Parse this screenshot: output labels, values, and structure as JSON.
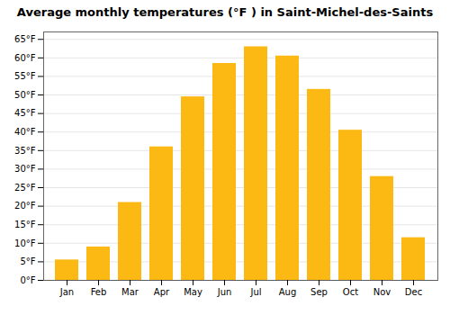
{
  "chart_data": {
    "type": "bar",
    "title": "Average monthly temperatures (°F ) in Saint-Michel-des-Saints",
    "categories": [
      "Jan",
      "Feb",
      "Mar",
      "Apr",
      "May",
      "Jun",
      "Jul",
      "Aug",
      "Sep",
      "Oct",
      "Nov",
      "Dec"
    ],
    "values": [
      5.5,
      9.0,
      21.0,
      36.0,
      49.5,
      58.5,
      63.0,
      60.5,
      51.5,
      40.5,
      28.0,
      11.5
    ],
    "color": "#FDB913",
    "ylim": [
      0,
      67
    ],
    "yticks": [
      {
        "value": 0,
        "label": "0°F"
      },
      {
        "value": 5,
        "label": "5°F"
      },
      {
        "value": 10,
        "label": "10°F"
      },
      {
        "value": 15,
        "label": "15°F"
      },
      {
        "value": 20,
        "label": "20°F"
      },
      {
        "value": 25,
        "label": "25°F"
      },
      {
        "value": 30,
        "label": "30°F"
      },
      {
        "value": 35,
        "label": "35°F"
      },
      {
        "value": 40,
        "label": "40°F"
      },
      {
        "value": 45,
        "label": "45°F"
      },
      {
        "value": 50,
        "label": "50°F"
      },
      {
        "value": 55,
        "label": "55°F"
      },
      {
        "value": 60,
        "label": "60°F"
      },
      {
        "value": 65,
        "label": "65°F"
      }
    ],
    "grid": true
  }
}
